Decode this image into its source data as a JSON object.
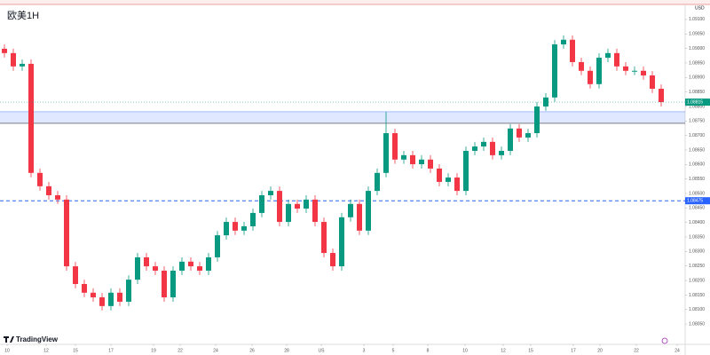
{
  "chart_data": {
    "type": "candlestick",
    "title": "欧美1H",
    "currency": "USD",
    "brand": "TradingView",
    "up_color": "#089981",
    "down_color": "#f23645",
    "open": [
      1.08999,
      1.08984,
      1.08938,
      1.08947,
      1.08571,
      1.08525,
      1.08494,
      1.08479,
      1.08249,
      1.08188,
      1.08158,
      1.08142,
      1.08112,
      1.08158,
      1.08127,
      1.08203,
      1.0828,
      1.08249,
      1.08234,
      1.08142,
      1.08234,
      1.08265,
      1.08249,
      1.08234,
      1.0828,
      1.08356,
      1.08402,
      1.08372,
      1.08387,
      1.08433,
      1.08494,
      1.08509,
      1.08402,
      1.08464,
      1.08448,
      1.08479,
      1.08402,
      1.08295,
      1.08249,
      1.08418,
      1.08464,
      1.08372,
      1.08509,
      1.08571,
      1.08708,
      1.08617,
      1.08632,
      1.08601,
      1.08617,
      1.08586,
      1.0854,
      1.08555,
      1.08509,
      1.08647,
      1.08662,
      1.08678,
      1.08632,
      1.08647,
      1.08724,
      1.08693,
      1.08708,
      1.088,
      1.08831,
      1.09014,
      1.0903,
      1.08953,
      1.08923,
      1.08877,
      1.08968,
      1.08984,
      1.08938,
      1.08923,
      1.08923,
      1.08907,
      1.08861
    ],
    "high": [
      1.09014,
      1.08999,
      1.08962,
      1.08962,
      1.08586,
      1.0854,
      1.08509,
      1.08494,
      1.08264,
      1.08203,
      1.08173,
      1.08157,
      1.08173,
      1.08173,
      1.08218,
      1.08295,
      1.08295,
      1.08264,
      1.08249,
      1.08249,
      1.0828,
      1.0828,
      1.08264,
      1.08295,
      1.08371,
      1.08417,
      1.08417,
      1.08402,
      1.08448,
      1.08509,
      1.08524,
      1.08524,
      1.08479,
      1.08479,
      1.08494,
      1.08494,
      1.08417,
      1.0831,
      1.08433,
      1.08479,
      1.08479,
      1.08524,
      1.08586,
      1.08782,
      1.08723,
      1.08647,
      1.08647,
      1.08632,
      1.08632,
      1.08601,
      1.0857,
      1.0857,
      1.08662,
      1.08677,
      1.08693,
      1.08693,
      1.08662,
      1.08739,
      1.08739,
      1.08723,
      1.08815,
      1.08846,
      1.09029,
      1.09045,
      1.09045,
      1.08968,
      1.08938,
      1.08983,
      1.08999,
      1.08999,
      1.08953,
      1.08938,
      1.08938,
      1.08922,
      1.08876
    ],
    "low": [
      1.08969,
      1.08923,
      1.08923,
      1.08556,
      1.0851,
      1.08479,
      1.08464,
      1.08234,
      1.08173,
      1.08143,
      1.08127,
      1.08097,
      1.08097,
      1.08112,
      1.08112,
      1.08188,
      1.08234,
      1.08219,
      1.08127,
      1.08127,
      1.08219,
      1.08234,
      1.08219,
      1.08219,
      1.08265,
      1.08341,
      1.08357,
      1.08357,
      1.08372,
      1.08418,
      1.08479,
      1.08387,
      1.08387,
      1.08433,
      1.08433,
      1.08387,
      1.0828,
      1.08234,
      1.08234,
      1.08403,
      1.08357,
      1.08357,
      1.08494,
      1.08556,
      1.08602,
      1.08602,
      1.08586,
      1.08586,
      1.08571,
      1.08525,
      1.08525,
      1.08494,
      1.08494,
      1.08632,
      1.08647,
      1.08617,
      1.08617,
      1.08632,
      1.08678,
      1.08678,
      1.08693,
      1.08785,
      1.08816,
      1.08999,
      1.08938,
      1.08908,
      1.08862,
      1.08862,
      1.08953,
      1.08923,
      1.08908,
      1.08908,
      1.08892,
      1.08846,
      1.088
    ],
    "close": [
      1.08984,
      1.08938,
      1.08947,
      1.08571,
      1.08525,
      1.08494,
      1.08479,
      1.08249,
      1.08188,
      1.08158,
      1.08142,
      1.08112,
      1.08158,
      1.08127,
      1.08203,
      1.0828,
      1.08249,
      1.08234,
      1.08142,
      1.08234,
      1.08265,
      1.08249,
      1.08234,
      1.0828,
      1.08356,
      1.08402,
      1.08372,
      1.08387,
      1.08433,
      1.08494,
      1.08509,
      1.08402,
      1.08464,
      1.08448,
      1.08479,
      1.08402,
      1.08295,
      1.08249,
      1.08418,
      1.08464,
      1.08372,
      1.08509,
      1.08571,
      1.08708,
      1.08617,
      1.08632,
      1.08601,
      1.08617,
      1.08586,
      1.0854,
      1.08555,
      1.08509,
      1.08647,
      1.08662,
      1.08678,
      1.08632,
      1.08647,
      1.08724,
      1.08693,
      1.08708,
      1.088,
      1.08831,
      1.09014,
      1.0903,
      1.08953,
      1.08923,
      1.08877,
      1.08968,
      1.08984,
      1.08938,
      1.08923,
      1.08923,
      1.08907,
      1.08861,
      1.08815
    ],
    "xlim": [
      -0.5,
      76.7
    ],
    "xticks": [
      {
        "value": 0.3,
        "label": "10"
      },
      {
        "value": 4.7,
        "label": "12"
      },
      {
        "value": 8,
        "label": "15"
      },
      {
        "value": 12,
        "label": "17"
      },
      {
        "value": 16.8,
        "label": "19"
      },
      {
        "value": 19.8,
        "label": "22"
      },
      {
        "value": 23.8,
        "label": "24"
      },
      {
        "value": 27.9,
        "label": "26"
      },
      {
        "value": 31.8,
        "label": "28"
      },
      {
        "value": 35.7,
        "label": "US"
      },
      {
        "value": 40.5,
        "label": "3"
      },
      {
        "value": 43.8,
        "label": "5"
      },
      {
        "value": 47.7,
        "label": "8"
      },
      {
        "value": 51.9,
        "label": "10"
      },
      {
        "value": 56.2,
        "label": "12"
      },
      {
        "value": 59.3,
        "label": "15"
      },
      {
        "value": 64.1,
        "label": "17"
      },
      {
        "value": 67.1,
        "label": "20"
      },
      {
        "value": 71.2,
        "label": "22"
      },
      {
        "value": 75.8,
        "label": "24"
      }
    ],
    "ylim": [
      1.0798,
      1.09167
    ],
    "yticks": [
      {
        "value": 1.0805,
        "label": "1.08050"
      },
      {
        "value": 1.081,
        "label": "1.08100"
      },
      {
        "value": 1.0815,
        "label": "1.08150"
      },
      {
        "value": 1.082,
        "label": "1.08200"
      },
      {
        "value": 1.0825,
        "label": "1.08250"
      },
      {
        "value": 1.083,
        "label": "1.08300"
      },
      {
        "value": 1.0835,
        "label": "1.08350"
      },
      {
        "value": 1.084,
        "label": "1.08400"
      },
      {
        "value": 1.0845,
        "label": "1.08450"
      },
      {
        "value": 1.085,
        "label": "1.08500"
      },
      {
        "value": 1.0855,
        "label": "1.08550"
      },
      {
        "value": 1.086,
        "label": "1.08600"
      },
      {
        "value": 1.0865,
        "label": "1.08650"
      },
      {
        "value": 1.087,
        "label": "1.08700"
      },
      {
        "value": 1.0875,
        "label": "1.08750"
      },
      {
        "value": 1.088,
        "label": "1.08800"
      },
      {
        "value": 1.0885,
        "label": "1.08850"
      },
      {
        "value": 1.089,
        "label": "1.08900"
      },
      {
        "value": 1.0895,
        "label": "1.08950"
      },
      {
        "value": 1.09,
        "label": "1.09000"
      },
      {
        "value": 1.0905,
        "label": "1.09050"
      },
      {
        "value": 1.091,
        "label": "1.09100"
      }
    ],
    "hlines": [
      {
        "value": 1.08475,
        "color": "#2962ff"
      }
    ],
    "zones": [
      {
        "from": 1.08742,
        "to": 1.08782,
        "color": "#2962ff"
      }
    ],
    "grid": false
  }
}
